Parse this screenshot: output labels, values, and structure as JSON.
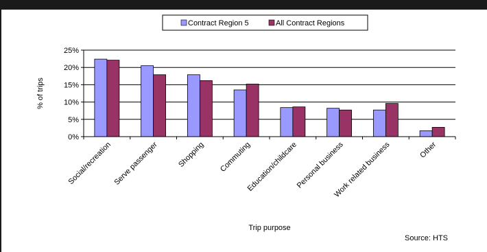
{
  "chart_data": {
    "type": "bar",
    "title": "",
    "xlabel": "Trip purpose",
    "ylabel": "% of trips",
    "ylim": [
      0,
      25
    ],
    "yticks": [
      "0%",
      "5%",
      "10%",
      "15%",
      "20%",
      "25%"
    ],
    "ytick_values": [
      0,
      5,
      10,
      15,
      20,
      25
    ],
    "grid": true,
    "legend": "top-center",
    "categories": [
      "Social/recreation",
      "Serve passenger",
      "Shopping",
      "Commuting",
      "Education/childcare",
      "Personal business",
      "Work related business",
      "Other"
    ],
    "series": [
      {
        "name": "Contract Region 5",
        "color": "#9999ff",
        "values": [
          22.4,
          20.5,
          17.9,
          13.5,
          8.4,
          8.2,
          7.7,
          1.7
        ]
      },
      {
        "name": "All Contract Regions",
        "color": "#993366",
        "values": [
          22.1,
          17.9,
          16.2,
          15.2,
          8.6,
          7.7,
          9.6,
          2.7
        ]
      }
    ],
    "source": "Source: HTS"
  }
}
